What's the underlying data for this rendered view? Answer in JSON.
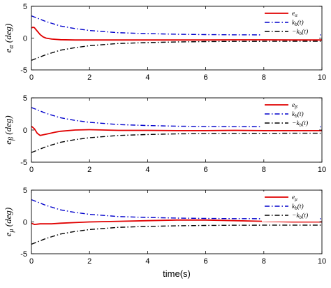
{
  "colors": {
    "error": "#e00000",
    "upper": "#0000cc",
    "lower": "#000000"
  },
  "chart_data": [
    {
      "type": "line",
      "ylabel": "e_α (deg)",
      "ylabel_main": "e",
      "ylabel_sub": "α",
      "ylabel_unit": "(deg)",
      "xlim": [
        0,
        10
      ],
      "ylim": [
        -5,
        5
      ],
      "xticks": [
        "0",
        "2",
        "4",
        "6",
        "8",
        "10"
      ],
      "yticks": [
        "5",
        "0",
        "-5"
      ],
      "grid": false,
      "legend_position": "top-right",
      "series": [
        {
          "name": "e_α",
          "legend": {
            "main": "e",
            "sub": "α"
          },
          "color": "#e00000",
          "style": "solid",
          "x": [
            0,
            0.05,
            0.1,
            0.2,
            0.3,
            0.4,
            0.5,
            0.7,
            1.0,
            1.5,
            2,
            3,
            4,
            5,
            6,
            7,
            8,
            9,
            10
          ],
          "y": [
            1.6,
            1.7,
            1.65,
            1.1,
            0.55,
            0.2,
            0.0,
            -0.15,
            -0.25,
            -0.3,
            -0.3,
            -0.3,
            -0.3,
            -0.3,
            -0.3,
            -0.28,
            -0.28,
            -0.3,
            -0.3
          ]
        },
        {
          "name": "k_b(t)",
          "legend": {
            "main": "k",
            "sub": "b",
            "tail": "(t)"
          },
          "color": "#0000cc",
          "style": "dashdot",
          "x": [
            0,
            0.5,
            1,
            1.5,
            2,
            3,
            4,
            5,
            6,
            7,
            8,
            9,
            10
          ],
          "y": [
            3.5,
            2.6,
            1.9,
            1.5,
            1.2,
            0.85,
            0.7,
            0.6,
            0.55,
            0.52,
            0.51,
            0.5,
            0.5
          ]
        },
        {
          "name": "-k_b(t)",
          "legend": {
            "main": "−k",
            "sub": "b",
            "tail": "(t)"
          },
          "color": "#000000",
          "style": "dashdot",
          "x": [
            0,
            0.5,
            1,
            1.5,
            2,
            3,
            4,
            5,
            6,
            7,
            8,
            9,
            10
          ],
          "y": [
            -3.5,
            -2.6,
            -1.9,
            -1.5,
            -1.2,
            -0.85,
            -0.7,
            -0.6,
            -0.55,
            -0.52,
            -0.51,
            -0.5,
            -0.5
          ]
        }
      ]
    },
    {
      "type": "line",
      "ylabel": "e_β (deg)",
      "ylabel_main": "e",
      "ylabel_sub": "β",
      "ylabel_unit": "(deg)",
      "xlim": [
        0,
        10
      ],
      "ylim": [
        -5,
        5
      ],
      "xticks": [
        "0",
        "2",
        "4",
        "6",
        "8",
        "10"
      ],
      "yticks": [
        "5",
        "0",
        "-5"
      ],
      "grid": false,
      "legend_position": "top-right",
      "series": [
        {
          "name": "e_β",
          "legend": {
            "main": "e",
            "sub": "β"
          },
          "color": "#e00000",
          "style": "solid",
          "x": [
            0,
            0.1,
            0.2,
            0.3,
            0.4,
            0.6,
            0.8,
            1.0,
            1.5,
            2,
            2.5,
            3,
            4,
            5,
            6,
            7,
            8,
            9,
            10
          ],
          "y": [
            0.6,
            0.2,
            -0.5,
            -0.85,
            -0.75,
            -0.55,
            -0.35,
            -0.2,
            0.0,
            0.05,
            0.0,
            -0.05,
            -0.05,
            -0.1,
            -0.1,
            -0.05,
            -0.1,
            -0.1,
            -0.1
          ]
        },
        {
          "name": "k_b(t)",
          "legend": {
            "main": "k",
            "sub": "b",
            "tail": "(t)"
          },
          "color": "#0000cc",
          "style": "dashdot",
          "x": [
            0,
            0.5,
            1,
            1.5,
            2,
            3,
            4,
            5,
            6,
            7,
            8,
            9,
            10
          ],
          "y": [
            3.5,
            2.6,
            1.9,
            1.5,
            1.2,
            0.85,
            0.7,
            0.6,
            0.55,
            0.52,
            0.51,
            0.5,
            0.5
          ]
        },
        {
          "name": "-k_b(t)",
          "legend": {
            "main": "−k",
            "sub": "b",
            "tail": "(t)"
          },
          "color": "#000000",
          "style": "dashdot",
          "x": [
            0,
            0.5,
            1,
            1.5,
            2,
            3,
            4,
            5,
            6,
            7,
            8,
            9,
            10
          ],
          "y": [
            -3.5,
            -2.6,
            -1.9,
            -1.5,
            -1.2,
            -0.85,
            -0.7,
            -0.6,
            -0.55,
            -0.52,
            -0.51,
            -0.5,
            -0.5
          ]
        }
      ]
    },
    {
      "type": "line",
      "ylabel": "e_μ (deg)",
      "ylabel_main": "e",
      "ylabel_sub": "μ",
      "ylabel_unit": "(deg)",
      "xlabel": "time(s)",
      "xlim": [
        0,
        10
      ],
      "ylim": [
        -5,
        5
      ],
      "xticks": [
        "0",
        "2",
        "4",
        "6",
        "8",
        "10"
      ],
      "yticks": [
        "5",
        "0",
        "-5"
      ],
      "grid": false,
      "legend_position": "top-right",
      "series": [
        {
          "name": "e_μ",
          "legend": {
            "main": "e",
            "sub": "μ"
          },
          "color": "#e00000",
          "style": "solid",
          "x": [
            0,
            0.1,
            0.2,
            0.3,
            0.5,
            0.7,
            1.0,
            1.5,
            2,
            3,
            4,
            5,
            6,
            7,
            8,
            9,
            10
          ],
          "y": [
            -0.2,
            -0.4,
            -0.35,
            -0.3,
            -0.3,
            -0.3,
            -0.2,
            -0.1,
            0.0,
            0.1,
            0.2,
            0.3,
            0.3,
            0.2,
            0.1,
            0.0,
            0.0
          ]
        },
        {
          "name": "k_b(t)",
          "legend": {
            "main": "k",
            "sub": "b",
            "tail": "(t)"
          },
          "color": "#0000cc",
          "style": "dashdot",
          "x": [
            0,
            0.5,
            1,
            1.5,
            2,
            3,
            4,
            5,
            6,
            7,
            8,
            9,
            10
          ],
          "y": [
            3.5,
            2.6,
            1.9,
            1.5,
            1.2,
            0.85,
            0.7,
            0.6,
            0.55,
            0.52,
            0.51,
            0.5,
            0.5
          ]
        },
        {
          "name": "-k_b(t)",
          "legend": {
            "main": "−k",
            "sub": "b",
            "tail": "(t)"
          },
          "color": "#000000",
          "style": "dashdot",
          "x": [
            0,
            0.5,
            1,
            1.5,
            2,
            3,
            4,
            5,
            6,
            7,
            8,
            9,
            10
          ],
          "y": [
            -3.5,
            -2.6,
            -1.9,
            -1.5,
            -1.2,
            -0.85,
            -0.7,
            -0.6,
            -0.55,
            -0.52,
            -0.51,
            -0.5,
            -0.5
          ]
        }
      ]
    }
  ]
}
